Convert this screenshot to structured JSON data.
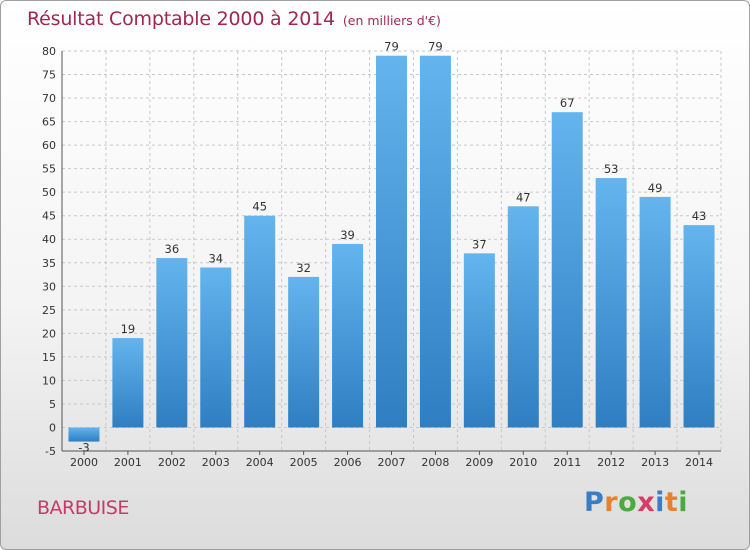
{
  "title": "Résultat Comptable 2000 à 2014",
  "unit_note": "(en milliers d'€)",
  "commune": "BARBUISE",
  "logo": {
    "text": "Proxiti",
    "letters": [
      "P",
      "r",
      "o",
      "x",
      "i",
      "t",
      "i"
    ],
    "colors": [
      "#3b7dc4",
      "#e8822a",
      "#4aaa3c",
      "#d63b6a",
      "#3b7dc4",
      "#e8822a",
      "#4aaa3c"
    ]
  },
  "colors": {
    "title": "#a0284f",
    "bar_light": "#64b4ee",
    "bar_dark": "#2f7ec2",
    "grid": "#c8c8c8"
  },
  "chart_data": {
    "type": "bar",
    "title": "Résultat Comptable 2000 à 2014",
    "subtitle": "(en milliers d'€)",
    "xlabel": "",
    "ylabel": "",
    "categories": [
      "2000",
      "2001",
      "2002",
      "2003",
      "2004",
      "2005",
      "2006",
      "2007",
      "2008",
      "2009",
      "2010",
      "2011",
      "2012",
      "2013",
      "2014"
    ],
    "values": [
      -3,
      19,
      36,
      34,
      45,
      32,
      39,
      79,
      79,
      37,
      47,
      67,
      53,
      49,
      43
    ],
    "value_labels": [
      "-3",
      "19",
      "36",
      "34",
      "45",
      "32",
      "39",
      "79",
      "79",
      "37",
      "47",
      "67",
      "53",
      "49",
      "43"
    ],
    "ylim": [
      -5,
      80
    ],
    "yticks": [
      -5,
      0,
      5,
      10,
      15,
      20,
      25,
      30,
      35,
      40,
      45,
      50,
      55,
      60,
      65,
      70,
      75,
      80
    ],
    "ytick_labels": [
      "-5",
      "0",
      "5",
      "10",
      "15",
      "20",
      "25",
      "30",
      "35",
      "40",
      "45",
      "50",
      "55",
      "60",
      "65",
      "70",
      "75",
      "80"
    ],
    "grid": true
  }
}
